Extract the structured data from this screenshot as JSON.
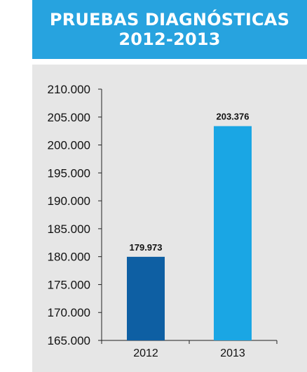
{
  "header": {
    "line1": "PRUEBAS DIAGNÓSTICAS",
    "line2": "2012-2013"
  },
  "colors": {
    "header_bg": "#27a3df",
    "panel_bg": "#e6e6e6",
    "bar_2012": "#0e5fa3",
    "bar_2013": "#1aa6e4"
  },
  "chart_data": {
    "type": "bar",
    "categories": [
      "2012",
      "2013"
    ],
    "values": [
      179973,
      203376
    ],
    "data_labels": [
      "179.973",
      "203.376"
    ],
    "bar_colors": [
      "#0e5fa3",
      "#1aa6e4"
    ],
    "ylim": [
      165000,
      210000
    ],
    "yticks": [
      165000,
      170000,
      175000,
      180000,
      185000,
      190000,
      195000,
      200000,
      205000,
      210000
    ],
    "ytick_labels": [
      "165.000",
      "170.000",
      "175.000",
      "180.000",
      "185.000",
      "190.000",
      "195.000",
      "200.000",
      "205.000",
      "210.000"
    ],
    "title": "",
    "xlabel": "",
    "ylabel": "",
    "grid": false,
    "legend": "none"
  }
}
